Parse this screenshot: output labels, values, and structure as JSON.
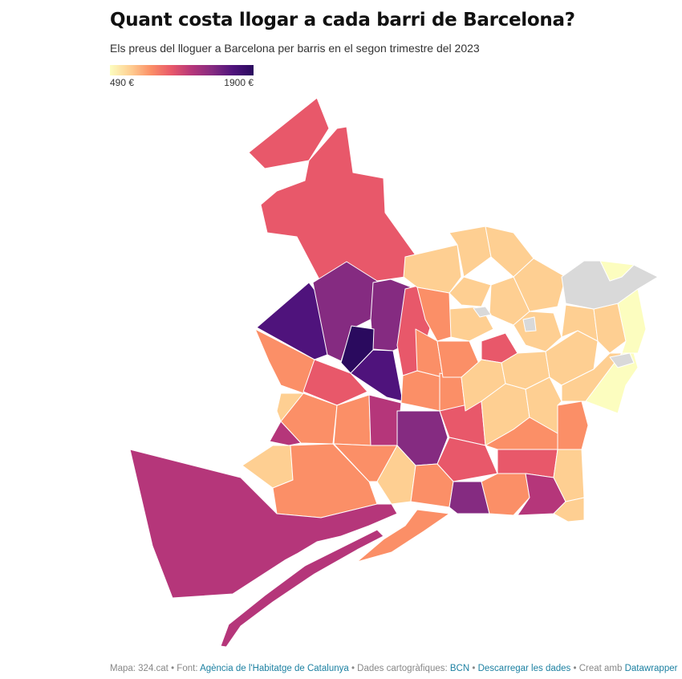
{
  "title": "Quant costa llogar a cada barri de Barcelona?",
  "subtitle": "Els preus del lloguer a Barcelona per barris en el segon trimestre del 2023",
  "legend": {
    "min_label": "490 €",
    "max_label": "1900 €"
  },
  "colors": {
    "scale": [
      "#fcfdbf",
      "#fecf92",
      "#fb8f67",
      "#e8586a",
      "#b5367a",
      "#852b81",
      "#4f137c",
      "#2a0a5e"
    ],
    "no_data": "#d9d9d9"
  },
  "footer": {
    "map_credit": "Mapa: 324.cat",
    "sep1": " • Font: ",
    "source_link": "Agència de l'Habitatge de Catalunya",
    "sep2": " • Dades cartogràfiques: ",
    "carto_link": "BCN",
    "sep3": " • ",
    "download_link": "Descarregar les dades",
    "sep4": " • Creat amb ",
    "tool_link": "Datawrapper"
  }
}
